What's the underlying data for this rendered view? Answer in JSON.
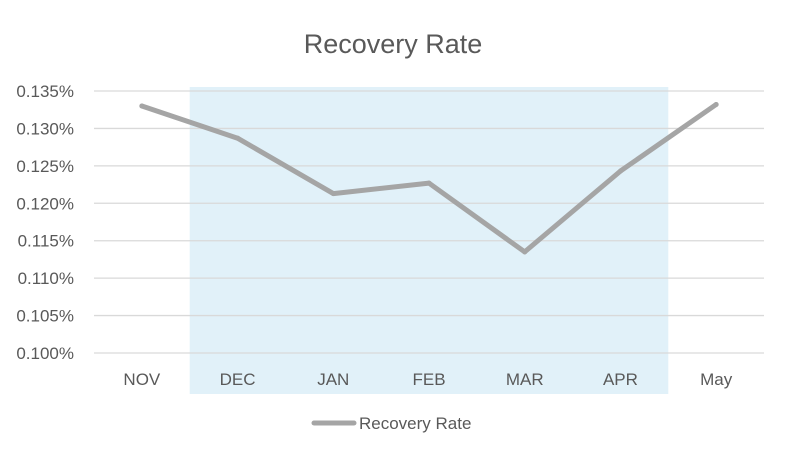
{
  "chart_data": {
    "type": "line",
    "title": "Recovery Rate",
    "xlabel": "",
    "ylabel": "",
    "categories": [
      "NOV",
      "DEC",
      "JAN",
      "FEB",
      "MAR",
      "APR",
      "May"
    ],
    "series": [
      {
        "name": "Recovery Rate",
        "color": "#a5a5a5",
        "values": [
          0.133,
          0.1287,
          0.1213,
          0.1227,
          0.1135,
          0.1243,
          0.1332
        ]
      }
    ],
    "ylim": [
      0.1,
      0.135
    ],
    "yticks": [
      0.1,
      0.105,
      0.11,
      0.115,
      0.12,
      0.125,
      0.13,
      0.135
    ],
    "ytick_labels": [
      "0.100%",
      "0.105%",
      "0.110%",
      "0.115%",
      "0.120%",
      "0.125%",
      "0.130%",
      "0.135%"
    ],
    "highlight": {
      "from": "DEC",
      "to": "APR",
      "color": "#e1f1f9"
    },
    "grid": true,
    "gridline_color": "#d9d9d9",
    "legend_position": "bottom"
  }
}
